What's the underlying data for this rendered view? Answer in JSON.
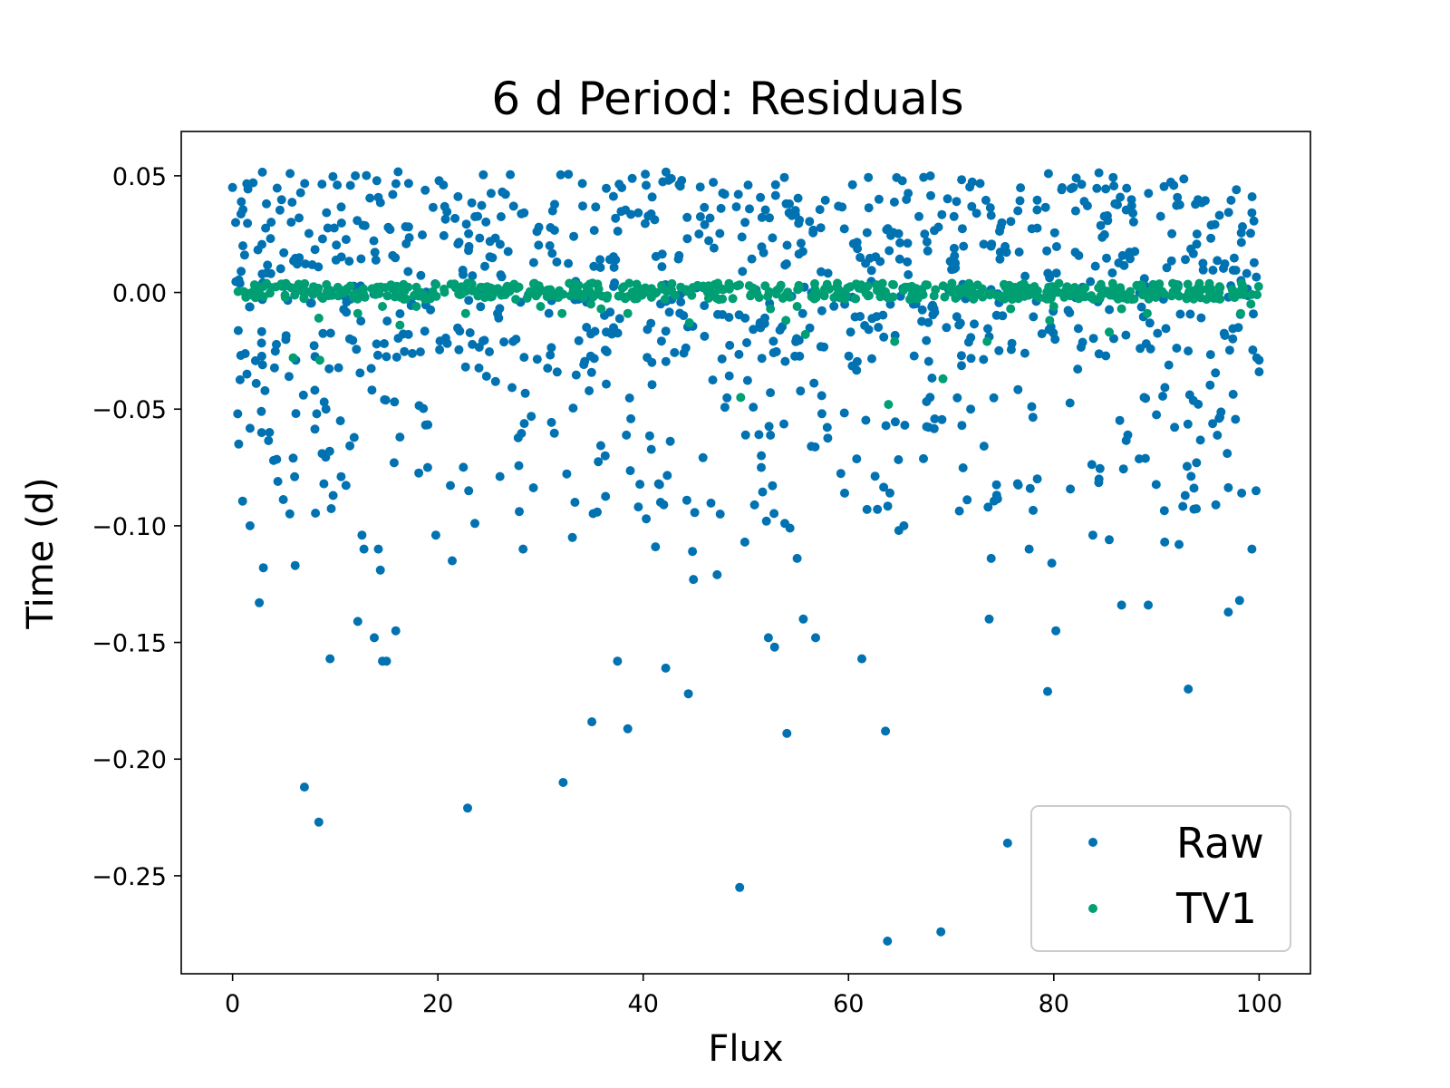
{
  "chart_data": {
    "type": "scatter",
    "title": "6 d Period: Residuals",
    "xlabel": "Flux",
    "ylabel": "Time (d)",
    "xlim": [
      -5,
      105
    ],
    "ylim": [
      -0.292,
      0.069
    ],
    "xticks": [
      0,
      20,
      40,
      60,
      80,
      100
    ],
    "xtick_labels": [
      "0",
      "20",
      "40",
      "60",
      "80",
      "100"
    ],
    "yticks": [
      0.05,
      0.0,
      -0.05,
      -0.1,
      -0.15,
      -0.2,
      -0.25
    ],
    "ytick_labels": [
      "0.05",
      "0.00",
      "−0.05",
      "−0.10",
      "−0.15",
      "−0.20",
      "−0.25"
    ],
    "grid": false,
    "legend": {
      "position": "lower-right"
    },
    "series": [
      {
        "name": "Raw",
        "color": "#0072b2",
        "points": [
          [
            0.0,
            0.045
          ],
          [
            0.3,
            0.03
          ],
          [
            0.5,
            -0.052
          ],
          [
            0.6,
            -0.065
          ],
          [
            0.8,
            -0.027
          ],
          [
            1.0,
            0.02
          ],
          [
            1.4,
            -0.035
          ],
          [
            1.7,
            -0.1
          ],
          [
            2.0,
            0.047
          ],
          [
            2.3,
            -0.039
          ],
          [
            2.6,
            -0.133
          ],
          [
            2.8,
            -0.051
          ],
          [
            3.0,
            -0.118
          ],
          [
            3.3,
            0.038
          ],
          [
            3.6,
            -0.06
          ],
          [
            4.0,
            -0.072
          ],
          [
            5.5,
            -0.036
          ],
          [
            5.9,
            -0.071
          ],
          [
            6.1,
            -0.117
          ],
          [
            6.9,
            -0.044
          ],
          [
            7.0,
            -0.212
          ],
          [
            8.2,
            -0.052
          ],
          [
            8.4,
            -0.227
          ],
          [
            8.9,
            -0.082
          ],
          [
            9.1,
            -0.05
          ],
          [
            9.5,
            -0.157
          ],
          [
            9.8,
            -0.087
          ],
          [
            10.5,
            -0.055
          ],
          [
            12.2,
            -0.141
          ],
          [
            12.6,
            -0.104
          ],
          [
            12.8,
            -0.11
          ],
          [
            13.8,
            -0.148
          ],
          [
            14.2,
            -0.11
          ],
          [
            14.4,
            -0.119
          ],
          [
            14.6,
            -0.158
          ],
          [
            14.8,
            -0.046
          ],
          [
            15.0,
            -0.158
          ],
          [
            15.9,
            -0.145
          ],
          [
            16.3,
            -0.062
          ],
          [
            19.0,
            -0.075
          ],
          [
            19.8,
            -0.104
          ],
          [
            21.4,
            -0.115
          ],
          [
            22.9,
            -0.221
          ],
          [
            23.0,
            -0.085
          ],
          [
            23.6,
            -0.099
          ],
          [
            28.3,
            -0.11
          ],
          [
            32.2,
            -0.21
          ],
          [
            33.1,
            -0.105
          ],
          [
            35.0,
            -0.184
          ],
          [
            36.3,
            -0.07
          ],
          [
            37.5,
            -0.158
          ],
          [
            38.5,
            -0.187
          ],
          [
            40.3,
            -0.097
          ],
          [
            41.2,
            -0.109
          ],
          [
            42.0,
            -0.091
          ],
          [
            42.2,
            -0.161
          ],
          [
            44.4,
            -0.172
          ],
          [
            44.8,
            -0.111
          ],
          [
            44.9,
            -0.123
          ],
          [
            47.2,
            -0.121
          ],
          [
            47.5,
            -0.095
          ],
          [
            49.4,
            -0.255
          ],
          [
            49.9,
            -0.107
          ],
          [
            51.5,
            -0.075
          ],
          [
            52.0,
            -0.098
          ],
          [
            52.2,
            -0.148
          ],
          [
            52.8,
            -0.152
          ],
          [
            53.8,
            -0.099
          ],
          [
            54.0,
            -0.189
          ],
          [
            54.3,
            -0.101
          ],
          [
            55.0,
            -0.114
          ],
          [
            55.6,
            -0.14
          ],
          [
            56.8,
            -0.148
          ],
          [
            61.3,
            -0.157
          ],
          [
            61.8,
            -0.093
          ],
          [
            63.6,
            -0.188
          ],
          [
            63.8,
            -0.278
          ],
          [
            64.9,
            -0.102
          ],
          [
            65.4,
            -0.1
          ],
          [
            69.0,
            -0.274
          ],
          [
            71.9,
            -0.05
          ],
          [
            73.6,
            -0.092
          ],
          [
            73.7,
            -0.14
          ],
          [
            73.9,
            -0.114
          ],
          [
            75.5,
            -0.236
          ],
          [
            77.6,
            -0.11
          ],
          [
            77.7,
            -0.084
          ],
          [
            79.4,
            -0.171
          ],
          [
            79.8,
            -0.116
          ],
          [
            80.2,
            -0.145
          ],
          [
            83.8,
            -0.104
          ],
          [
            84.4,
            -0.08
          ],
          [
            85.4,
            -0.106
          ],
          [
            86.6,
            -0.134
          ],
          [
            89.2,
            -0.134
          ],
          [
            90.8,
            -0.107
          ],
          [
            92.2,
            -0.108
          ],
          [
            92.8,
            -0.087
          ],
          [
            93.1,
            -0.17
          ],
          [
            93.9,
            -0.073
          ],
          [
            97.0,
            -0.137
          ],
          [
            98.1,
            -0.132
          ],
          [
            98.3,
            -0.086
          ],
          [
            99.3,
            -0.11
          ],
          [
            99.7,
            -0.085
          ],
          [
            100.0,
            -0.034
          ],
          [
            100.0,
            -0.029
          ],
          [
            96.1,
            -0.054
          ],
          [
            96.9,
            -0.069
          ],
          [
            88.8,
            -0.045
          ]
        ],
        "band": {
          "n": 720,
          "ymin": -0.03,
          "ymax": 0.052,
          "seed": 17
        },
        "spread": {
          "n": 200,
          "ymin": -0.095,
          "ymax": -0.03,
          "seed": 29
        }
      },
      {
        "name": "TV1",
        "color": "#009e73",
        "points": [
          [
            5.9,
            -0.028
          ],
          [
            8.4,
            -0.011
          ],
          [
            8.5,
            -0.029
          ],
          [
            12.2,
            -0.009
          ],
          [
            14.6,
            -0.006
          ],
          [
            16.3,
            -0.014
          ],
          [
            17.9,
            -0.006
          ],
          [
            22.7,
            -0.009
          ],
          [
            30.0,
            -0.006
          ],
          [
            32.1,
            -0.009
          ],
          [
            34.9,
            -0.005
          ],
          [
            35.9,
            -0.007
          ],
          [
            38.5,
            -0.009
          ],
          [
            44.5,
            -0.013
          ],
          [
            49.5,
            -0.045
          ],
          [
            52.4,
            -0.007
          ],
          [
            53.9,
            -0.012
          ],
          [
            55.0,
            -0.006
          ],
          [
            55.8,
            -0.018
          ],
          [
            63.9,
            -0.048
          ],
          [
            64.5,
            -0.021
          ],
          [
            69.2,
            -0.037
          ],
          [
            73.5,
            -0.021
          ],
          [
            75.8,
            -0.007
          ],
          [
            79.6,
            -0.012
          ],
          [
            80.0,
            -0.006
          ],
          [
            85.4,
            -0.017
          ],
          [
            86.6,
            -0.007
          ],
          [
            89.1,
            -0.009
          ],
          [
            98.2,
            -0.009
          ],
          [
            99.2,
            -0.005
          ],
          [
            99.8,
            -0.001
          ]
        ],
        "band": {
          "n": 520,
          "ymin": -0.003,
          "ymax": 0.004,
          "seed": 43
        }
      }
    ]
  }
}
